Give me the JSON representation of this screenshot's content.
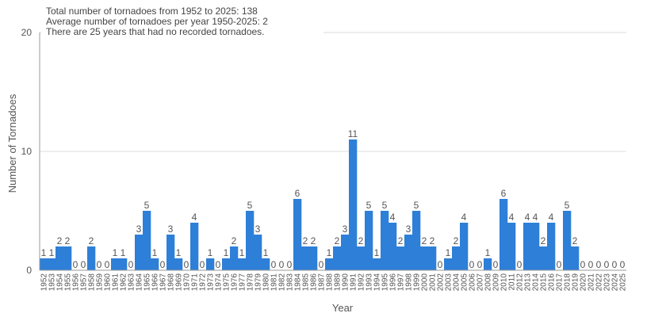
{
  "chart_data": {
    "type": "bar",
    "title_lines": [
      "Total number of tornadoes from 1952 to 2025: 138",
      "Average number of tornadoes per year 1950-2025: 2",
      "There are 25 years that had no recorded tornadoes."
    ],
    "xlabel": "Year",
    "ylabel": "Number of Tornadoes",
    "ylim": [
      0,
      20
    ],
    "yticks": [
      0,
      10,
      20
    ],
    "grid": true,
    "bar_color": "#2E7FD8",
    "categories": [
      "1952",
      "1953",
      "1954",
      "1955",
      "1956",
      "1957",
      "1958",
      "1959",
      "1960",
      "1961",
      "1962",
      "1963",
      "1964",
      "1965",
      "1966",
      "1967",
      "1968",
      "1969",
      "1970",
      "1971",
      "1972",
      "1973",
      "1974",
      "1975",
      "1976",
      "1977",
      "1978",
      "1979",
      "1980",
      "1981",
      "1982",
      "1983",
      "1984",
      "1985",
      "1986",
      "1987",
      "1988",
      "1989",
      "1990",
      "1991",
      "1992",
      "1993",
      "1994",
      "1995",
      "1996",
      "1997",
      "1998",
      "1999",
      "2000",
      "2001",
      "2002",
      "2003",
      "2004",
      "2005",
      "2006",
      "2007",
      "2008",
      "2009",
      "2010",
      "2011",
      "2012",
      "2013",
      "2014",
      "2015",
      "2016",
      "2017",
      "2018",
      "2019",
      "2020",
      "2021",
      "2022",
      "2023",
      "2024",
      "2025"
    ],
    "values": [
      1,
      1,
      2,
      2,
      0,
      0,
      2,
      0,
      0,
      1,
      1,
      0,
      3,
      5,
      1,
      0,
      3,
      1,
      0,
      4,
      0,
      1,
      0,
      1,
      2,
      1,
      5,
      3,
      1,
      0,
      0,
      0,
      6,
      2,
      2,
      0,
      1,
      2,
      3,
      11,
      2,
      5,
      1,
      5,
      4,
      2,
      3,
      5,
      2,
      2,
      0,
      1,
      2,
      4,
      0,
      0,
      1,
      0,
      6,
      4,
      0,
      4,
      4,
      2,
      4,
      0,
      5,
      2,
      0,
      0,
      0,
      0,
      0,
      0
    ]
  }
}
